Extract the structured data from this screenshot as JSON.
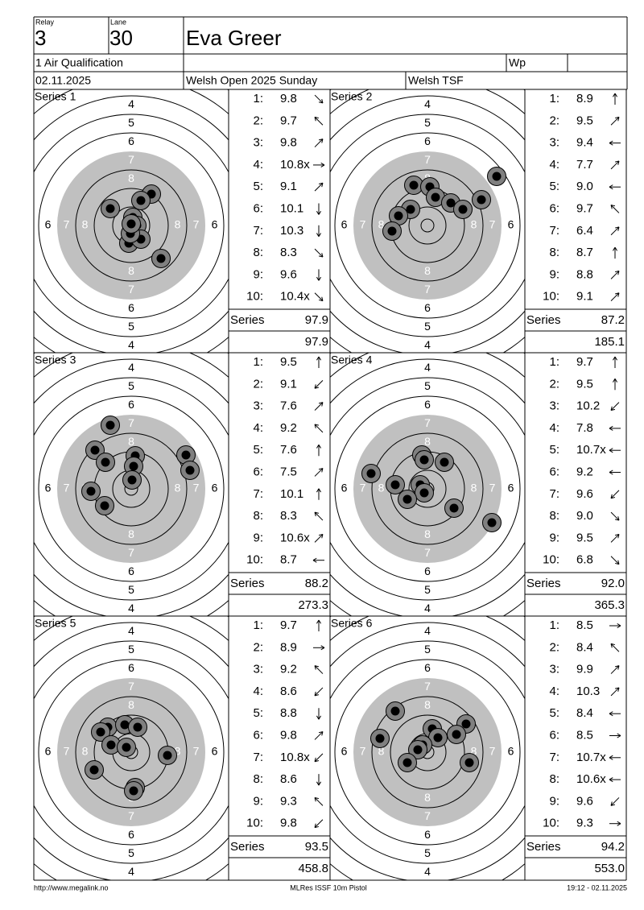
{
  "header": {
    "relay_label": "Relay",
    "relay": "3",
    "lane_label": "Lane",
    "lane": "30",
    "name": "Eva Greer",
    "event": "1 Air Qualification",
    "wp_label": "Wp",
    "date": "02.11.2025",
    "competition": "Welsh Open 2025 Sunday",
    "club": "Welsh TSF"
  },
  "target_ring_labels": [
    "4",
    "5",
    "6",
    "7",
    "8"
  ],
  "shot_numbers": [
    "1:",
    "2:",
    "3:",
    "4:",
    "5:",
    "6:",
    "7:",
    "8:",
    "9:",
    "10:"
  ],
  "series": [
    {
      "title": "Series 1",
      "shots": [
        "9.8",
        "9.7",
        "9.8",
        "10.8x",
        "9.1",
        "10.1",
        "10.3",
        "8.3",
        "9.6",
        "10.4x"
      ],
      "total_label": "Series",
      "total": "97.9",
      "cumulative": "97.9"
    },
    {
      "title": "Series 2",
      "shots": [
        "8.9",
        "9.5",
        "9.4",
        "7.7",
        "9.0",
        "9.7",
        "6.4",
        "8.7",
        "8.8",
        "9.1"
      ],
      "total_label": "Series",
      "total": "87.2",
      "cumulative": "185.1"
    },
    {
      "title": "Series 3",
      "shots": [
        "9.5",
        "9.1",
        "7.6",
        "9.2",
        "7.6",
        "7.5",
        "10.1",
        "8.3",
        "10.6x",
        "8.7"
      ],
      "total_label": "Series",
      "total": "88.2",
      "cumulative": "273.3"
    },
    {
      "title": "Series 4",
      "shots": [
        "9.7",
        "9.5",
        "10.2",
        "7.8",
        "10.7x",
        "9.2",
        "9.6",
        "9.0",
        "9.5",
        "6.8"
      ],
      "total_label": "Series",
      "total": "92.0",
      "cumulative": "365.3"
    },
    {
      "title": "Series 5",
      "shots": [
        "9.7",
        "8.9",
        "9.2",
        "8.6",
        "8.8",
        "9.8",
        "10.8x",
        "8.6",
        "9.3",
        "9.8"
      ],
      "total_label": "Series",
      "total": "93.5",
      "cumulative": "458.8"
    },
    {
      "title": "Series 6",
      "shots": [
        "8.5",
        "8.4",
        "9.9",
        "10.3",
        "8.4",
        "8.5",
        "10.7x",
        "10.6x",
        "9.6",
        "9.3"
      ],
      "total_label": "Series",
      "total": "94.2",
      "cumulative": "553.0"
    }
  ],
  "footer": {
    "url": "http://www.megalink.no",
    "software": "MLRes ISSF 10m Pistol",
    "timestamp": "19:12 - 02.11.2025"
  }
}
